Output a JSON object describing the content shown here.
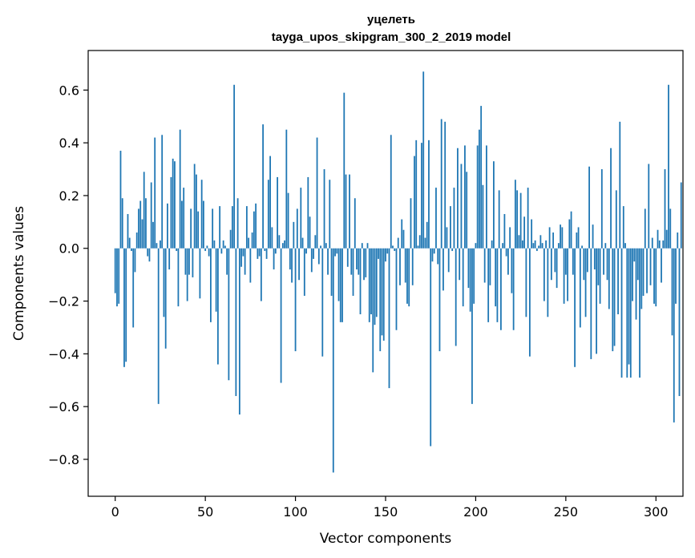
{
  "chart_data": {
    "type": "bar",
    "title": "уцелеть",
    "subtitle": "tayga_upos_skipgram_300_2_2019 model",
    "xlabel": "Vector components",
    "ylabel": "Components values",
    "xlim": [
      -15,
      315
    ],
    "ylim": [
      -0.94,
      0.75
    ],
    "x_ticks": [
      0,
      50,
      100,
      150,
      200,
      250,
      300
    ],
    "y_ticks": [
      -0.8,
      -0.6,
      -0.4,
      -0.2,
      0.0,
      0.2,
      0.4,
      0.6
    ],
    "x_tick_labels": [
      "0",
      "50",
      "100",
      "150",
      "200",
      "250",
      "300"
    ],
    "y_tick_labels": [
      "−0.8",
      "−0.6",
      "−0.4",
      "−0.2",
      "0.0",
      "0.2",
      "0.4",
      "0.6"
    ],
    "bar_color": "#1f77b4",
    "grid": false,
    "values": [
      -0.17,
      -0.22,
      -0.21,
      0.37,
      0.19,
      -0.45,
      -0.43,
      0.13,
      0.04,
      -0.01,
      -0.3,
      -0.09,
      0.06,
      0.15,
      0.18,
      0.11,
      0.29,
      0.19,
      -0.03,
      -0.05,
      0.25,
      0.1,
      0.42,
      0.02,
      -0.59,
      0.03,
      0.43,
      -0.26,
      -0.38,
      0.17,
      -0.08,
      0.27,
      0.34,
      0.33,
      -0.01,
      -0.22,
      0.45,
      0.18,
      0.23,
      -0.1,
      -0.2,
      -0.1,
      0.15,
      -0.11,
      0.32,
      0.28,
      0.14,
      -0.19,
      0.26,
      0.18,
      -0.01,
      0.01,
      -0.03,
      -0.28,
      0.15,
      0.03,
      -0.24,
      -0.44,
      0.16,
      -0.02,
      0.03,
      0.01,
      -0.1,
      -0.5,
      0.07,
      0.16,
      0.62,
      -0.56,
      0.19,
      -0.63,
      -0.07,
      -0.03,
      -0.1,
      0.16,
      0.04,
      -0.13,
      0.06,
      0.14,
      0.17,
      -0.04,
      -0.03,
      -0.2,
      0.47,
      -0.01,
      -0.04,
      0.26,
      0.35,
      0.08,
      -0.08,
      -0.02,
      0.27,
      0.05,
      -0.51,
      0.02,
      0.03,
      0.45,
      0.21,
      -0.08,
      -0.13,
      0.1,
      -0.39,
      0.15,
      -0.12,
      0.23,
      0.04,
      -0.18,
      -0.02,
      0.27,
      0.12,
      -0.09,
      -0.04,
      0.05,
      0.42,
      -0.06,
      0.01,
      -0.41,
      0.3,
      0.02,
      -0.1,
      0.26,
      -0.18,
      -0.85,
      -0.03,
      -0.02,
      -0.2,
      -0.28,
      -0.28,
      0.59,
      0.28,
      -0.07,
      0.28,
      -0.1,
      -0.18,
      0.19,
      -0.08,
      -0.1,
      -0.25,
      0.02,
      -0.12,
      -0.11,
      0.02,
      -0.28,
      -0.25,
      -0.47,
      -0.29,
      -0.26,
      -0.04,
      -0.39,
      -0.33,
      -0.35,
      -0.05,
      -0.02,
      -0.53,
      0.43,
      0.01,
      -0.01,
      -0.31,
      0.04,
      -0.14,
      0.11,
      0.07,
      -0.13,
      -0.21,
      -0.22,
      0.19,
      -0.14,
      0.35,
      0.41,
      0.01,
      0.05,
      0.4,
      0.67,
      0.04,
      0.1,
      0.41,
      -0.75,
      -0.05,
      -0.02,
      0.23,
      -0.06,
      -0.39,
      0.49,
      -0.16,
      0.48,
      0.08,
      -0.09,
      0.16,
      -0.01,
      0.23,
      -0.37,
      0.38,
      -0.12,
      0.32,
      -0.22,
      0.39,
      0.29,
      -0.15,
      -0.24,
      -0.59,
      -0.21,
      0.02,
      0.39,
      0.45,
      0.54,
      0.24,
      -0.13,
      0.39,
      -0.28,
      -0.14,
      0.03,
      0.33,
      -0.22,
      -0.28,
      0.22,
      -0.31,
      0.02,
      0.13,
      -0.03,
      -0.1,
      0.08,
      -0.17,
      -0.31,
      0.26,
      0.22,
      0.05,
      0.21,
      0.03,
      0.12,
      -0.26,
      0.23,
      -0.41,
      0.11,
      0.02,
      0.03,
      -0.01,
      0.01,
      0.05,
      0.02,
      -0.2,
      0.03,
      -0.26,
      0.08,
      -0.12,
      0.06,
      -0.09,
      -0.15,
      0.02,
      0.09,
      0.08,
      -0.21,
      -0.1,
      -0.2,
      0.11,
      0.14,
      -0.1,
      -0.45,
      0.06,
      0.08,
      -0.3,
      0.01,
      -0.12,
      -0.26,
      -0.09,
      0.31,
      -0.42,
      0.09,
      -0.08,
      -0.4,
      -0.14,
      -0.21,
      0.3,
      -0.1,
      0.02,
      -0.12,
      -0.23,
      0.38,
      -0.39,
      -0.37,
      0.22,
      -0.25,
      0.48,
      -0.49,
      0.16,
      0.02,
      -0.49,
      -0.44,
      -0.49,
      -0.2,
      -0.05,
      -0.27,
      -0.12,
      -0.49,
      -0.23,
      -0.18,
      0.15,
      -0.17,
      0.32,
      -0.14,
      0.04,
      -0.21,
      -0.22,
      0.07,
      0.03,
      -0.13,
      0.03,
      0.3,
      0.07,
      0.62,
      0.15,
      -0.33,
      -0.66,
      -0.21,
      0.06,
      -0.56,
      0.25
    ]
  }
}
